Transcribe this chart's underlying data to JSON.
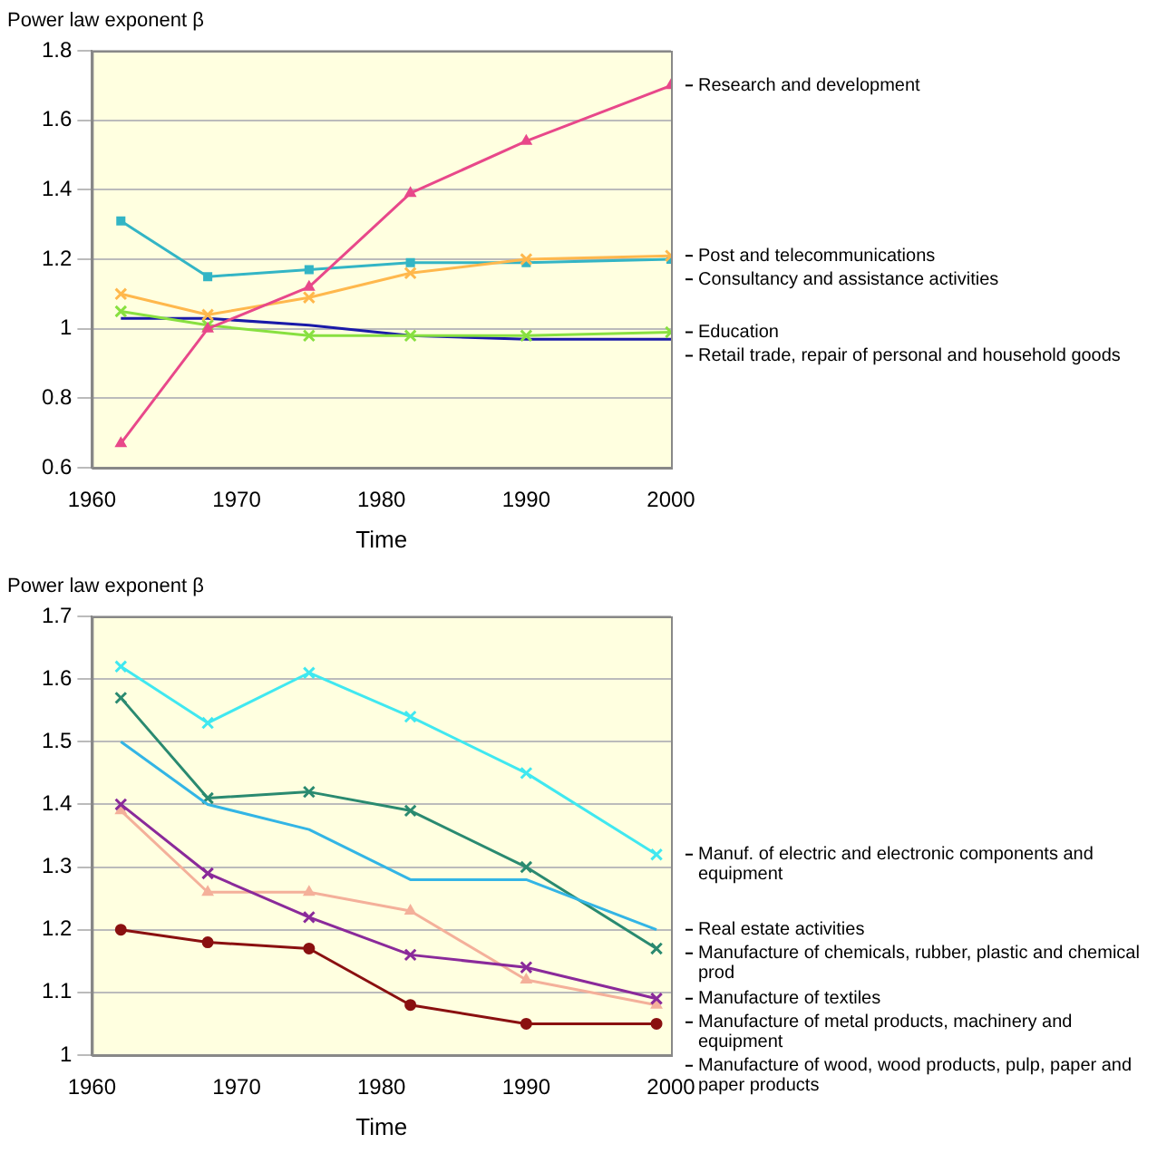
{
  "chart_data": [
    {
      "type": "line",
      "ylabel": "Power law exponent β",
      "xlabel": "Time",
      "x": [
        1962,
        1968,
        1975,
        1982,
        1990,
        2000
      ],
      "xlim": [
        1960,
        2000
      ],
      "xticks": [
        1960,
        1970,
        1980,
        1990,
        2000
      ],
      "ylim": [
        0.6,
        1.8
      ],
      "yticks": [
        0.6,
        0.8,
        1,
        1.2,
        1.4,
        1.6,
        1.8
      ],
      "grid": "y",
      "legend": false,
      "series": [
        {
          "name": "Research and development",
          "color": "#e8488a",
          "marker": "triangle",
          "values": [
            0.67,
            1.0,
            1.12,
            1.39,
            1.54,
            1.7
          ]
        },
        {
          "name": "Post and telecommunications",
          "color": "#ffb84d",
          "marker": "cross",
          "values": [
            1.1,
            1.04,
            1.09,
            1.16,
            1.2,
            1.21
          ]
        },
        {
          "name": "Consultancy and assistance activities",
          "color": "#33b5c5",
          "marker": "square",
          "values": [
            1.31,
            1.15,
            1.17,
            1.19,
            1.19,
            1.2
          ]
        },
        {
          "name": "Education",
          "color": "#88e040",
          "marker": "cross",
          "values": [
            1.05,
            1.01,
            0.98,
            0.98,
            0.98,
            0.99
          ]
        },
        {
          "name": "Retail trade, repair of personal and household goods",
          "color": "#1a1aa8",
          "marker": "none",
          "values": [
            1.03,
            1.03,
            1.01,
            0.98,
            0.97,
            0.97
          ]
        }
      ]
    },
    {
      "type": "line",
      "ylabel": "Power law exponent β",
      "xlabel": "Time",
      "x": [
        1962,
        1968,
        1975,
        1982,
        1990,
        1999
      ],
      "xlim": [
        1960,
        2000
      ],
      "xticks": [
        1960,
        1970,
        1980,
        1990,
        2000
      ],
      "ylim": [
        1,
        1.7
      ],
      "yticks": [
        1,
        1.1,
        1.2,
        1.3,
        1.4,
        1.5,
        1.6,
        1.7
      ],
      "grid": "y",
      "legend": false,
      "series": [
        {
          "name": "Manuf. of electric and electronic components and equipment",
          "color": "#40e8f0",
          "marker": "cross",
          "values": [
            1.62,
            1.53,
            1.61,
            1.54,
            1.45,
            1.32
          ]
        },
        {
          "name": "Real estate activities",
          "color": "#33b5e5",
          "marker": "none",
          "values": [
            1.5,
            1.4,
            1.36,
            1.28,
            1.28,
            1.2
          ]
        },
        {
          "name": "Manufacture of chemicals, rubber, plastic and chemical prod",
          "color": "#2a8a70",
          "marker": "cross",
          "values": [
            1.57,
            1.41,
            1.42,
            1.39,
            1.3,
            1.17
          ]
        },
        {
          "name": "Manufacture of textiles",
          "color": "#8a2a9a",
          "marker": "cross",
          "values": [
            1.4,
            1.29,
            1.22,
            1.16,
            1.14,
            1.09
          ]
        },
        {
          "name": "Manufacture of metal products, machinery and equipment",
          "color": "#f4b09a",
          "marker": "triangle",
          "values": [
            1.39,
            1.26,
            1.26,
            1.23,
            1.12,
            1.08
          ]
        },
        {
          "name": "Manufacture of wood, wood products, pulp, paper and paper products",
          "color": "#8a1010",
          "marker": "circle",
          "values": [
            1.2,
            1.18,
            1.17,
            1.08,
            1.05,
            1.05
          ]
        }
      ]
    }
  ]
}
